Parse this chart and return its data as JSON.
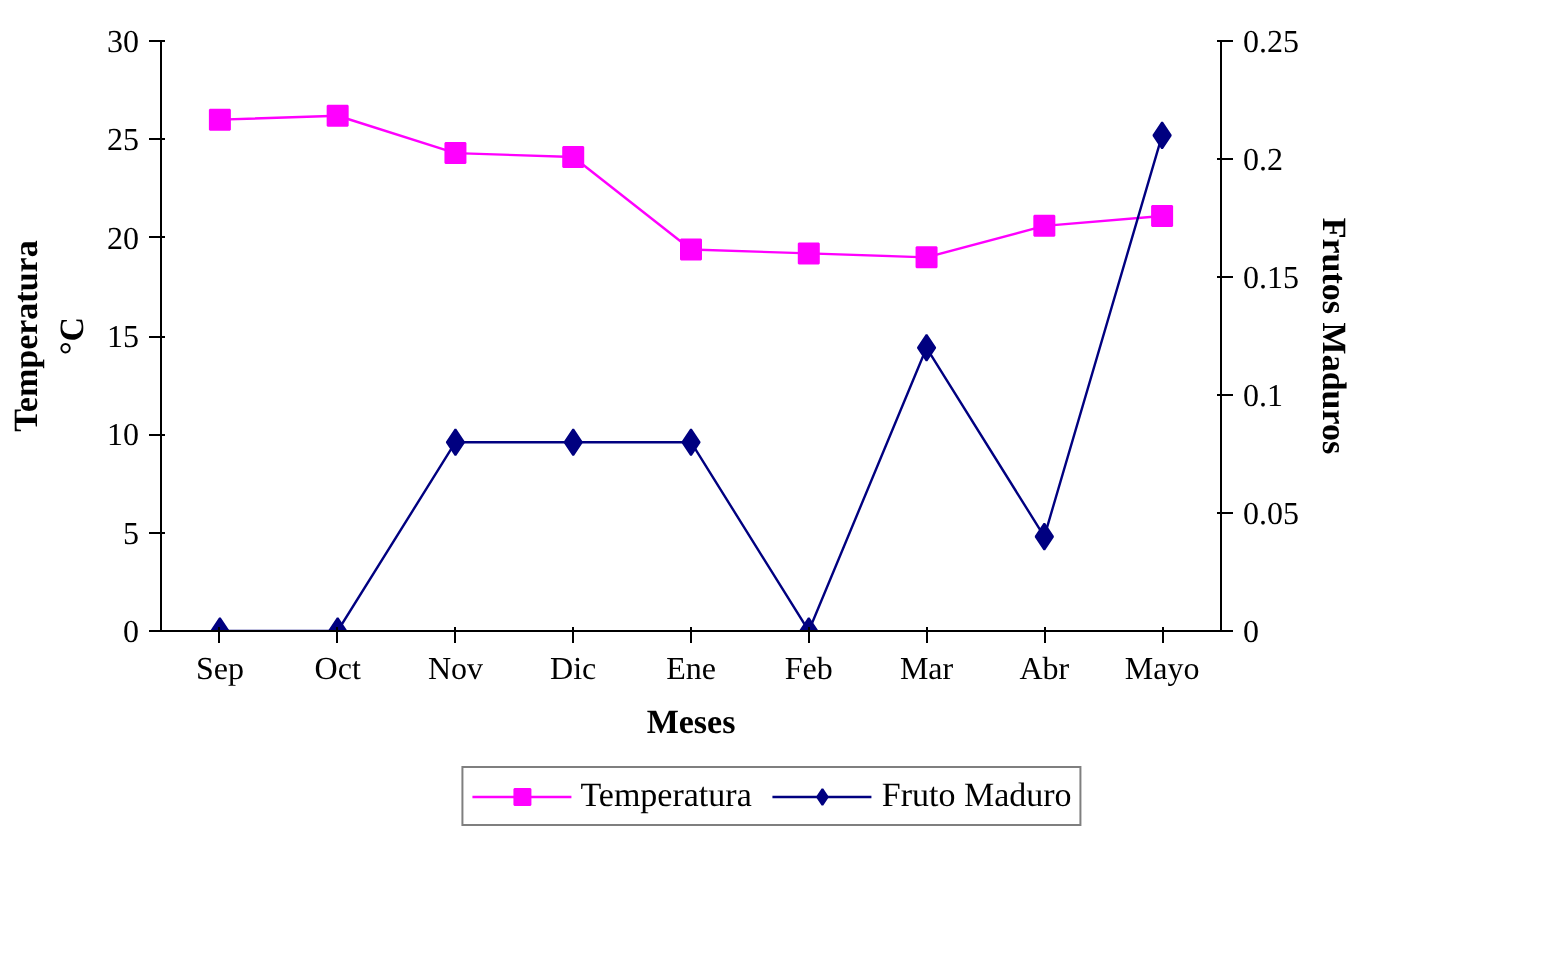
{
  "chart_data": {
    "type": "line",
    "xlabel": "Meses",
    "ylabel": "Temperatura\n°C",
    "y2label": "Frutos Maduros",
    "categories": [
      "Sep",
      "Oct",
      "Nov",
      "Dic",
      "Ene",
      "Feb",
      "Mar",
      "Abr",
      "Mayo"
    ],
    "series": [
      {
        "name": "Temperatura",
        "color": "#ff00ff",
        "marker": "square",
        "values": [
          26.0,
          26.2,
          24.3,
          24.1,
          19.4,
          19.2,
          19.0,
          20.6,
          21.1
        ]
      },
      {
        "name": "Fruto Maduro",
        "color": "#000080",
        "marker": "diamond",
        "axis": "y2",
        "values": [
          0,
          0,
          0.08,
          0.08,
          0.08,
          0,
          0.12,
          0.04,
          0.21
        ]
      }
    ],
    "ylim": [
      0,
      30
    ],
    "yticks": [
      0,
      5,
      10,
      15,
      20,
      25,
      30
    ],
    "y2lim": [
      0,
      0.25
    ],
    "y2ticks": [
      0,
      0.05,
      0.1,
      0.15,
      0.2,
      0.25
    ],
    "grid": false,
    "legend": "bottom",
    "line_style": "solid"
  }
}
